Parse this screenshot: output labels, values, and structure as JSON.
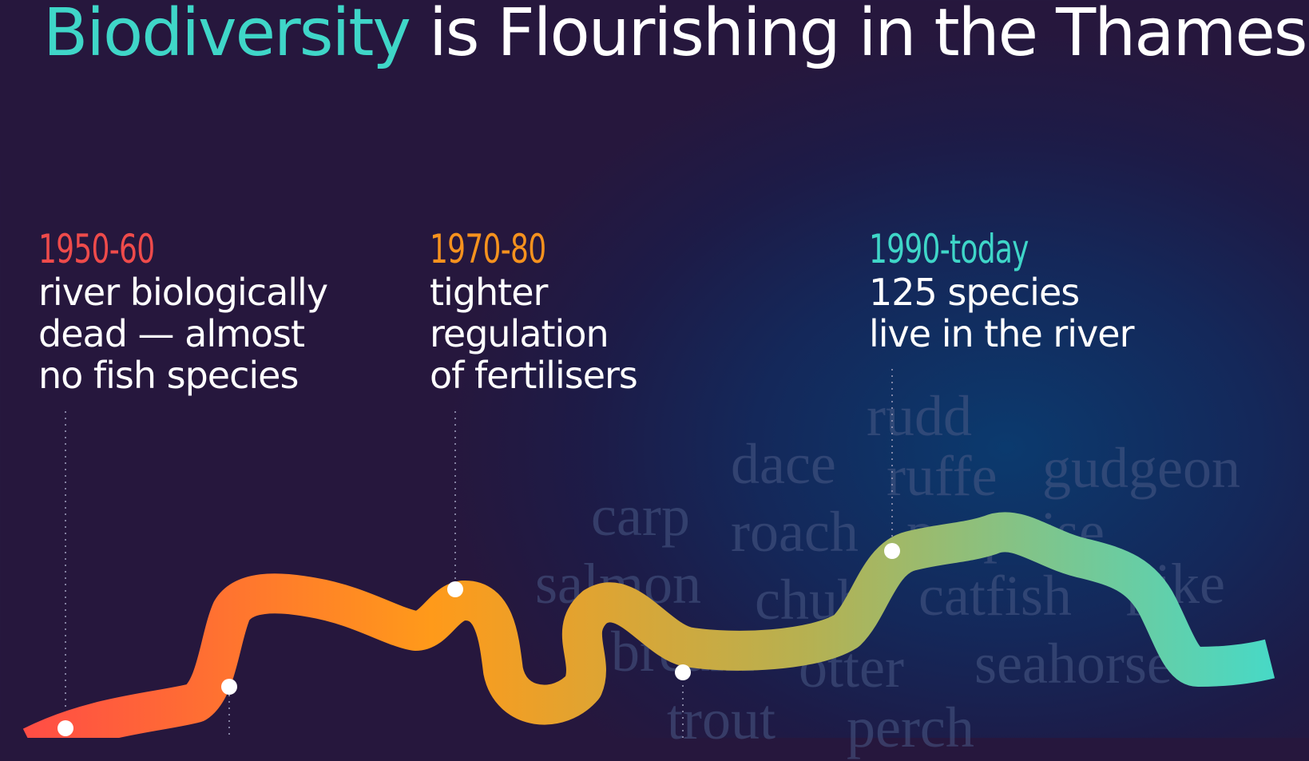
{
  "title": {
    "highlight": "Biodiversity",
    "rest": " is Flourishing in the Thames"
  },
  "eras": [
    {
      "period": "1950-60",
      "line1": "river biologically",
      "line2": "dead — almost",
      "line3": "no fish species",
      "color": "#ef4b4b"
    },
    {
      "period": "1970-80",
      "line1": "tighter",
      "line2": "regulation",
      "line3": "of fertilisers",
      "color": "#f6921e"
    },
    {
      "period": "1990-today",
      "line1": "125 species",
      "line2": "live in the river",
      "color": "#3fd6c8"
    }
  ],
  "species": [
    "rudd",
    "dace",
    "ruffe",
    "gudgeon",
    "carp",
    "roach",
    "porpoise",
    "salmon",
    "chub",
    "catfish",
    "pike",
    "bream",
    "otter",
    "seahorse",
    "trout",
    "perch"
  ],
  "colors": {
    "river_start": "#ff4848",
    "river_mid": "#ff9a1a",
    "river_olive": "#b5b152",
    "river_end": "#3fdccf"
  }
}
